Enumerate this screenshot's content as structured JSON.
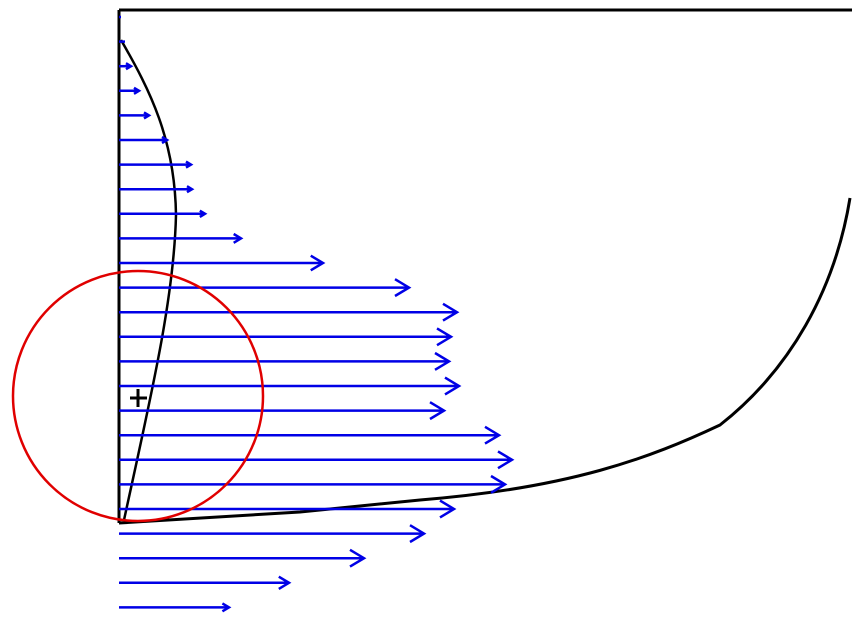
{
  "diagram": {
    "type": "velocity-profile",
    "colors": {
      "background": "#ffffff",
      "boundary": "#000000",
      "vectors": "#0000e6",
      "circle": "#e00000",
      "marker": "#000000"
    },
    "icons": {
      "marker": "plus-marker-icon",
      "arrowhead": "arrowhead-icon"
    },
    "vector_lengths": [
      2,
      6,
      12,
      20,
      30,
      48,
      72,
      73,
      86,
      122,
      204,
      290,
      338,
      332,
      330,
      340,
      325,
      380,
      393,
      386,
      335,
      305,
      245,
      170,
      110,
      78
    ]
  }
}
